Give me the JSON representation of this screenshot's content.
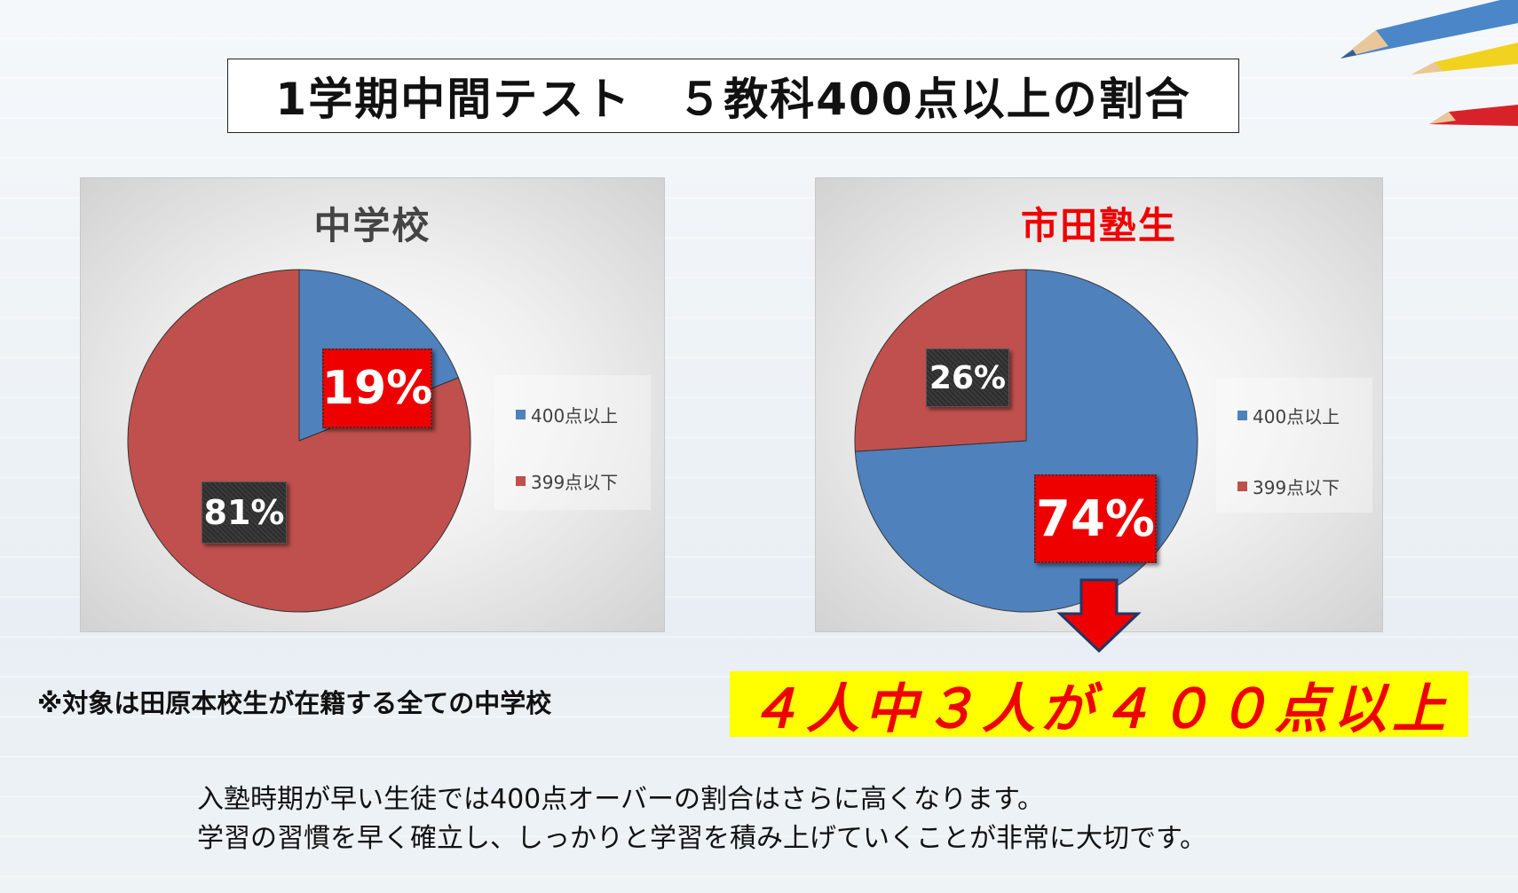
{
  "title": "1学期中間テスト　５教科400点以上の割合",
  "note": "※対象は田原本校生が在籍する全ての中学校",
  "highlight": "４人中３人が４００点以上",
  "body": {
    "line1": "入塾時期が早い生徒では400点オーバーの割合はさらに高くなります。",
    "line2": "学習の習慣を早く確立し、しっかりと学習を積み上げていくことが非常に大切です。"
  },
  "colors": {
    "blue": "#4f81bd",
    "red": "#c0504d",
    "title_red": "#ee0000",
    "highlight_bg": "#ffff00"
  },
  "chart_data": [
    {
      "type": "pie",
      "title": "中学校",
      "categories": [
        "400点以上",
        "399点以下"
      ],
      "values": [
        19,
        81
      ],
      "data_labels": [
        "19%",
        "81%"
      ],
      "legend": "right"
    },
    {
      "type": "pie",
      "title": "市田塾生",
      "categories": [
        "400点以上",
        "399点以下"
      ],
      "values": [
        74,
        26
      ],
      "data_labels": [
        "74%",
        "26%"
      ],
      "legend": "right"
    }
  ]
}
